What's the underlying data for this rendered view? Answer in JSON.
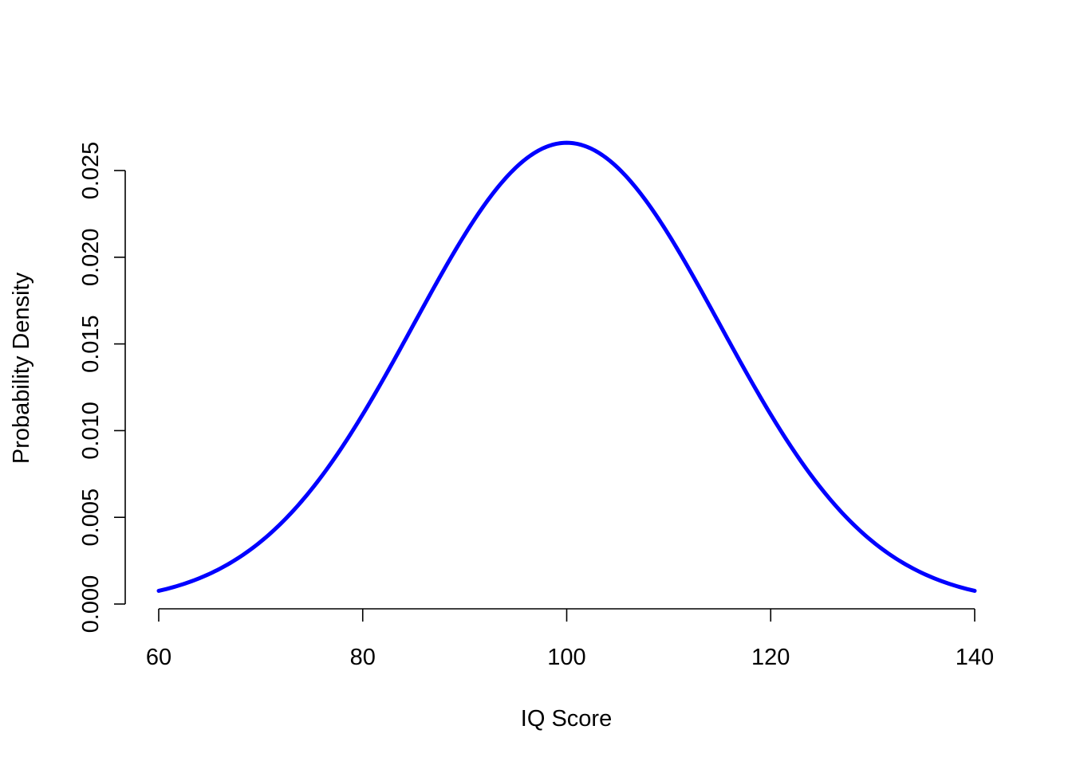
{
  "chart_data": {
    "type": "line",
    "title": "",
    "xlabel": "IQ Score",
    "ylabel": "Probability Density",
    "xlim": [
      60,
      140
    ],
    "ylim": [
      0,
      0.0266
    ],
    "x_ticks": [
      60,
      80,
      100,
      120,
      140
    ],
    "x_tick_labels": [
      "60",
      "80",
      "100",
      "120",
      "140"
    ],
    "y_ticks": [
      0,
      0.005,
      0.01,
      0.015,
      0.02,
      0.025
    ],
    "y_tick_labels": [
      "0.000",
      "0.005",
      "0.010",
      "0.015",
      "0.020",
      "0.025"
    ],
    "grid": false,
    "legend": "none",
    "series": [
      {
        "color": "#0000ff",
        "x": [
          60,
          62.5,
          65,
          67.5,
          70,
          72.5,
          75,
          77.5,
          80,
          82.5,
          85,
          87.5,
          90,
          92.5,
          95,
          97.5,
          100,
          102.5,
          105,
          107.5,
          110,
          112.5,
          115,
          117.5,
          120,
          122.5,
          125,
          127.5,
          130,
          132.5,
          135,
          137.5,
          140
        ],
        "y": [
          0.00076,
          0.00118,
          0.00178,
          0.00261,
          0.0037,
          0.00508,
          0.00679,
          0.00881,
          0.01109,
          0.01356,
          0.01613,
          0.01863,
          0.02091,
          0.02281,
          0.02419,
          0.02502,
          0.0266,
          0.02502,
          0.02419,
          0.02281,
          0.02091,
          0.01863,
          0.01613,
          0.01356,
          0.01109,
          0.00881,
          0.00679,
          0.00508,
          0.0037,
          0.00261,
          0.00178,
          0.00118,
          0.00076
        ]
      }
    ]
  }
}
